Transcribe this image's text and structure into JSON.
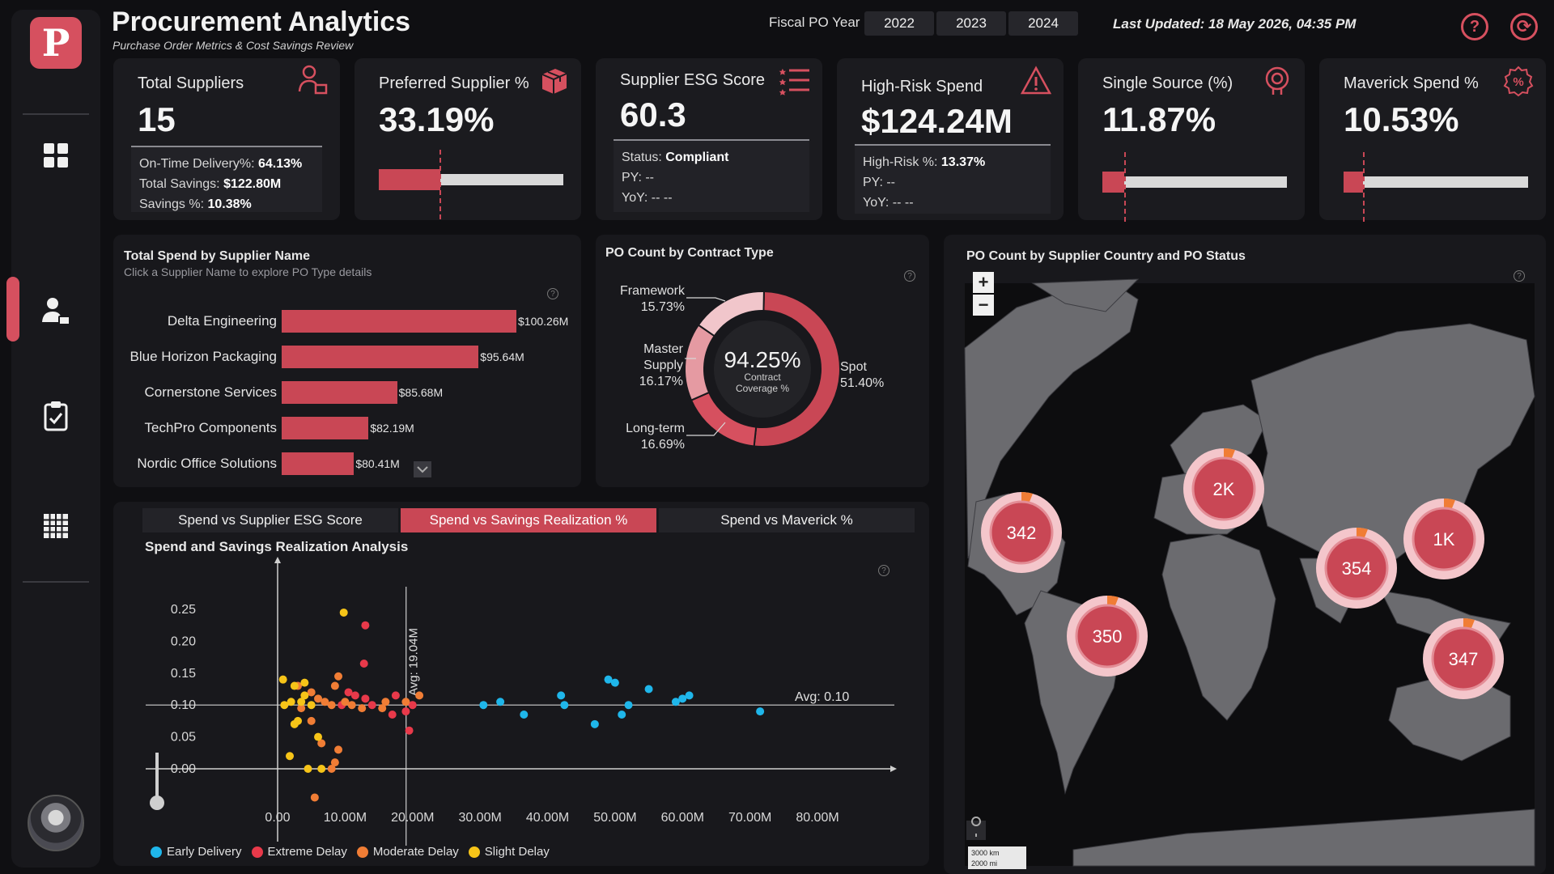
{
  "app": {
    "logo_letter": "P"
  },
  "header": {
    "title": "Procurement Analytics",
    "subtitle": "Purchase Order Metrics & Cost Savings Review",
    "fiscal_label": "Fiscal PO Year",
    "years": [
      "2022",
      "2023",
      "2024"
    ],
    "last_updated": "Last Updated: 18 May 2026, 04:35 PM",
    "help_icon": "?",
    "refresh_icon": "⟳"
  },
  "sidebar": {
    "items": [
      {
        "name": "dashboard-icon",
        "active": false
      },
      {
        "name": "supplier-icon",
        "active": true
      },
      {
        "name": "checklist-icon",
        "active": false
      },
      {
        "name": "table-grid-icon",
        "active": false
      }
    ]
  },
  "kpis": {
    "total_suppliers": {
      "title": "Total Suppliers",
      "value": "15",
      "lines": [
        {
          "label": "On-Time Delivery%: ",
          "value": "64.13%"
        },
        {
          "label": "Total Savings: ",
          "value": "$122.80M"
        },
        {
          "label": "Savings %: ",
          "value": "10.38%"
        }
      ]
    },
    "preferred_supplier": {
      "title": "Preferred Supplier %",
      "value": "33.19%",
      "fill_fraction": 0.3319,
      "target_fraction": 0.33
    },
    "esg": {
      "title": "Supplier ESG Score",
      "value": "60.3",
      "status_label": "Status: ",
      "status_value": "Compliant",
      "py": "PY: --",
      "yoy": "YoY: -- --"
    },
    "high_risk": {
      "title": "High-Risk Spend",
      "value": "$124.24M",
      "pct_label": "High-Risk %: ",
      "pct_value": "13.37%",
      "py": "PY: --",
      "yoy": "YoY: -- --"
    },
    "single_source": {
      "title": "Single Source (%)",
      "value": "11.87%",
      "fill_fraction": 0.1187,
      "target_fraction": 0.12
    },
    "maverick": {
      "title": "Maverick Spend %",
      "value": "10.53%",
      "fill_fraction": 0.1053,
      "target_fraction": 0.105
    }
  },
  "supplier_spend": {
    "title": "Total Spend by Supplier Name",
    "subtitle": "Click a Supplier Name to explore PO Type details",
    "rows": [
      {
        "name": "Delta Engineering",
        "value": 100.26,
        "label": "$100.26M"
      },
      {
        "name": "Blue Horizon Packaging",
        "value": 95.64,
        "label": "$95.64M"
      },
      {
        "name": "Cornerstone Services",
        "value": 85.68,
        "label": "$85.68M"
      },
      {
        "name": "TechPro Components",
        "value": 82.19,
        "label": "$82.19M"
      },
      {
        "name": "Nordic Office Solutions",
        "value": 80.41,
        "label": "$80.41M"
      }
    ]
  },
  "contract_type": {
    "title": "PO Count by Contract Type",
    "center_value": "94.25%",
    "center_label_1": "Contract",
    "center_label_2": "Coverage %",
    "slices": [
      {
        "name": "Spot",
        "pct": 51.4,
        "label": "51.40%",
        "color": "#c94755"
      },
      {
        "name": "Long-term",
        "pct": 16.69,
        "label": "16.69%",
        "color": "#d6505f"
      },
      {
        "name": "Master Supply",
        "pct": 16.17,
        "label": "16.17%",
        "color": "#e59aa2"
      },
      {
        "name": "Framework",
        "pct": 15.73,
        "label": "15.73%",
        "color": "#f1c6cb"
      }
    ],
    "labels": {
      "framework_name": "Framework",
      "framework_pct": "15.73%",
      "master_name_1": "Master",
      "master_name_2": "Supply",
      "master_pct": "16.17%",
      "longterm_name": "Long-term",
      "longterm_pct": "16.69%",
      "spot_name": "Spot",
      "spot_pct": "51.40%"
    }
  },
  "map": {
    "title": "PO Count by Supplier Country and PO Status",
    "zoom_in": "+",
    "zoom_out": "−",
    "scale_km": "3000 km",
    "scale_mi": "2000 mi",
    "bubbles": [
      {
        "label": "342",
        "region": "north-america"
      },
      {
        "label": "2K",
        "region": "europe"
      },
      {
        "label": "1K",
        "region": "east-asia"
      },
      {
        "label": "354",
        "region": "south-asia"
      },
      {
        "label": "350",
        "region": "south-america"
      },
      {
        "label": "347",
        "region": "oceania"
      }
    ]
  },
  "scatter_tabs": {
    "tabs": [
      "Spend vs Supplier ESG Score",
      "Spend vs Savings Realization %",
      "Spend vs Maverick %"
    ],
    "active_index": 1
  },
  "chart_data": {
    "type": "scatter",
    "title": "Spend and Savings Realization Analysis",
    "xlabel": "",
    "ylabel": "",
    "xlim": [
      -10,
      90
    ],
    "ylim": [
      -0.05,
      0.3
    ],
    "x_ticks": [
      "0.00",
      "10.00M",
      "20.00M",
      "30.00M",
      "40.00M",
      "50.00M",
      "60.00M",
      "70.00M",
      "80.00M"
    ],
    "y_ticks": [
      "0.00",
      "0.05",
      "0.10",
      "0.15",
      "0.20",
      "0.25"
    ],
    "ref_lines": {
      "x_avg": 19.04,
      "x_avg_label": "Avg: 19.04M",
      "y_avg": 0.1,
      "y_avg_label": "Avg: 0.10"
    },
    "legend_position": "bottom",
    "series": [
      {
        "name": "Early Delivery",
        "color": "#1fb6ea",
        "points": [
          [
            30.5,
            0.1
          ],
          [
            33,
            0.105
          ],
          [
            36.5,
            0.085
          ],
          [
            42,
            0.115
          ],
          [
            42.5,
            0.1
          ],
          [
            47,
            0.07
          ],
          [
            49,
            0.14
          ],
          [
            50,
            0.135
          ],
          [
            51,
            0.085
          ],
          [
            52,
            0.1
          ],
          [
            55,
            0.125
          ],
          [
            59,
            0.105
          ],
          [
            60,
            0.11
          ],
          [
            61,
            0.115
          ],
          [
            71.5,
            0.09
          ]
        ]
      },
      {
        "name": "Extreme Delay",
        "color": "#e8394a",
        "points": [
          [
            13,
            0.225
          ],
          [
            12.8,
            0.165
          ],
          [
            9.5,
            0.1
          ],
          [
            10.5,
            0.12
          ],
          [
            11.5,
            0.115
          ],
          [
            13,
            0.11
          ],
          [
            14,
            0.1
          ],
          [
            17,
            0.085
          ],
          [
            17.5,
            0.115
          ],
          [
            19,
            0.09
          ],
          [
            19.5,
            0.06
          ],
          [
            20,
            0.1
          ]
        ]
      },
      {
        "name": "Moderate Delay",
        "color": "#f07d35",
        "points": [
          [
            3,
            0.13
          ],
          [
            5,
            0.12
          ],
          [
            6,
            0.11
          ],
          [
            7,
            0.105
          ],
          [
            8,
            0.1
          ],
          [
            8.5,
            0.13
          ],
          [
            9,
            0.145
          ],
          [
            10,
            0.105
          ],
          [
            11,
            0.1
          ],
          [
            12.5,
            0.095
          ],
          [
            15.5,
            0.095
          ],
          [
            16,
            0.105
          ],
          [
            19,
            0.105
          ],
          [
            21,
            0.115
          ],
          [
            6.5,
            0.04
          ],
          [
            8.5,
            0.01
          ],
          [
            9,
            0.03
          ],
          [
            8,
            0.0
          ],
          [
            5.5,
            -0.045
          ],
          [
            3.5,
            0.095
          ],
          [
            5,
            0.075
          ]
        ]
      },
      {
        "name": "Slight Delay",
        "color": "#f6c418",
        "points": [
          [
            9.8,
            0.245
          ],
          [
            0.8,
            0.14
          ],
          [
            1,
            0.1
          ],
          [
            2.5,
            0.13
          ],
          [
            3.5,
            0.105
          ],
          [
            4,
            0.135
          ],
          [
            5,
            0.1
          ],
          [
            2.5,
            0.07
          ],
          [
            3,
            0.075
          ],
          [
            6,
            0.05
          ],
          [
            1.8,
            0.02
          ],
          [
            4.5,
            0.0
          ],
          [
            6.5,
            0.0
          ],
          [
            2,
            0.105
          ],
          [
            4,
            0.115
          ]
        ]
      }
    ]
  }
}
